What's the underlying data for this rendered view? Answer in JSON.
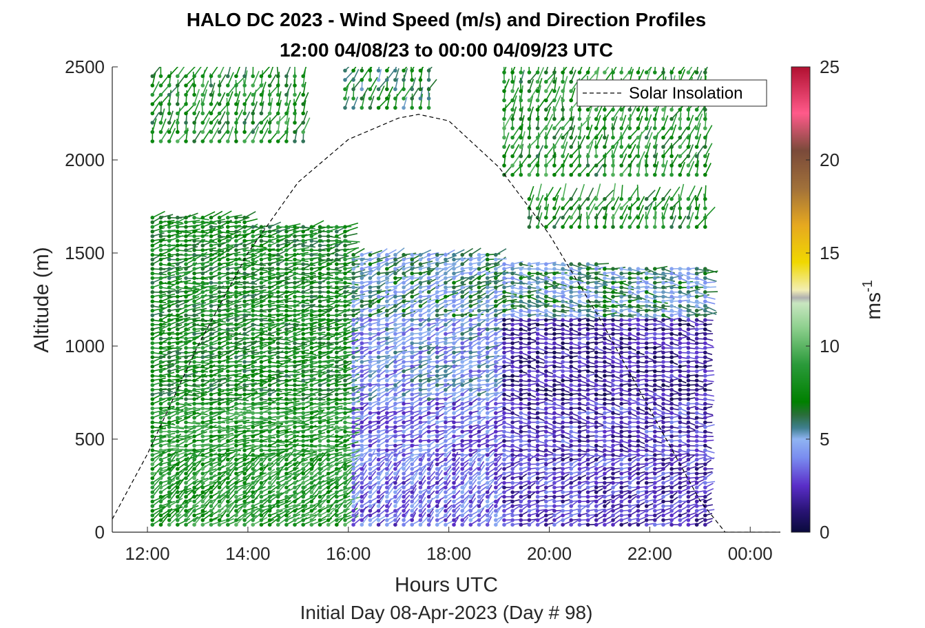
{
  "chart_data": {
    "type": "wind-barb-profile",
    "title": "HALO DC 2023 - Wind Speed (m/s) and Direction Profiles",
    "subtitle": "12:00 04/08/23 to 00:00 04/09/23  UTC",
    "xlabel": "Hours UTC",
    "ylabel": "Altitude (m)",
    "note": "Initial Day 08-Apr-2023 (Day # 98)",
    "xlim_hours": [
      11.3,
      24.6
    ],
    "ylim": [
      0,
      2500
    ],
    "x_ticks": [
      {
        "hour": 12,
        "label": "12:00"
      },
      {
        "hour": 14,
        "label": "14:00"
      },
      {
        "hour": 16,
        "label": "16:00"
      },
      {
        "hour": 18,
        "label": "18:00"
      },
      {
        "hour": 20,
        "label": "20:00"
      },
      {
        "hour": 22,
        "label": "22:00"
      },
      {
        "hour": 24,
        "label": "00:00"
      }
    ],
    "y_ticks": [
      0,
      500,
      1000,
      1500,
      2000,
      2500
    ],
    "colorbar": {
      "label": "ms",
      "label_superscript": "-1",
      "range": [
        0,
        25
      ],
      "ticks": [
        0,
        5,
        10,
        15,
        20,
        25
      ],
      "stops": [
        {
          "v": 0,
          "c": "#0a0a3c"
        },
        {
          "v": 1.2,
          "c": "#2a1478"
        },
        {
          "v": 2.5,
          "c": "#5a2ec8"
        },
        {
          "v": 4,
          "c": "#7a8cf0"
        },
        {
          "v": 5,
          "c": "#8fb4f2"
        },
        {
          "v": 5.6,
          "c": "#3f7f8f"
        },
        {
          "v": 6.3,
          "c": "#2a6e3a"
        },
        {
          "v": 7,
          "c": "#008000"
        },
        {
          "v": 9,
          "c": "#2a9a3a"
        },
        {
          "v": 11,
          "c": "#8ed08e"
        },
        {
          "v": 12.3,
          "c": "#c8e6c0"
        },
        {
          "v": 12.6,
          "c": "#b0b0b0"
        },
        {
          "v": 13,
          "c": "#f2eeb4"
        },
        {
          "v": 14.5,
          "c": "#f0d800"
        },
        {
          "v": 16.5,
          "c": "#e6a820"
        },
        {
          "v": 18.5,
          "c": "#a0703a"
        },
        {
          "v": 20.5,
          "c": "#7a4a3a"
        },
        {
          "v": 22.5,
          "c": "#ff5a8a"
        },
        {
          "v": 25,
          "c": "#b01030"
        }
      ]
    },
    "legend": {
      "label": "Solar Insolation",
      "position": "top-right",
      "style": "dashed black line"
    },
    "solar_insolation_curve": {
      "units": "altitude-axis units",
      "points": [
        [
          11.3,
          70
        ],
        [
          12.0,
          420
        ],
        [
          13.0,
          1000
        ],
        [
          14.0,
          1500
        ],
        [
          15.0,
          1880
        ],
        [
          16.0,
          2110
        ],
        [
          17.0,
          2225
        ],
        [
          17.4,
          2245
        ],
        [
          18.0,
          2210
        ],
        [
          19.0,
          1960
        ],
        [
          20.0,
          1600
        ],
        [
          21.0,
          1150
        ],
        [
          22.0,
          660
        ],
        [
          23.0,
          170
        ],
        [
          23.5,
          0
        ],
        [
          24.6,
          0
        ]
      ]
    },
    "wind_profiles": {
      "time_start_hour": 12.1,
      "time_step_hours": 0.1667,
      "time_end_hour": 23.2,
      "altitude_step_m": 25,
      "altitude_start_m": 40,
      "profile_tops_m": [
        {
          "until_hour": 14.0,
          "top": 1700
        },
        {
          "until_hour": 16.0,
          "top": 1650
        },
        {
          "until_hour": 19.0,
          "top": 1500
        },
        {
          "until_hour": 21.0,
          "top": 1460
        },
        {
          "until_hour": 23.2,
          "top": 1420
        }
      ],
      "upper_layers": [
        {
          "from_hour": 12.1,
          "to_hour": 15.1,
          "bottom": 2100,
          "top": 2490,
          "speed_ms": 8
        },
        {
          "from_hour": 15.8,
          "to_hour": 17.6,
          "bottom": 2280,
          "top": 2490,
          "speed_ms": 7
        },
        {
          "from_hour": 19.0,
          "to_hour": 23.2,
          "bottom": 1920,
          "top": 2490,
          "speed_ms": 8
        },
        {
          "from_hour": 19.6,
          "to_hour": 23.2,
          "bottom": 1640,
          "top": 1830,
          "speed_ms": 8
        }
      ],
      "speed_regimes": [
        {
          "from_hour": 12.1,
          "to_hour": 16.0,
          "low_level_speed_ms": 8.5,
          "mid_level_speed_ms": 7.5,
          "direction_to_deg": 70
        },
        {
          "from_hour": 16.0,
          "to_hour": 19.0,
          "low_level_speed_ms": 3.5,
          "mid_level_speed_ms": 4.5,
          "direction_to_deg": 60
        },
        {
          "from_hour": 19.0,
          "to_hour": 23.2,
          "low_level_speed_ms": 2.5,
          "mid_level_speed_ms": 1.8,
          "direction_to_deg": 85
        }
      ]
    }
  }
}
